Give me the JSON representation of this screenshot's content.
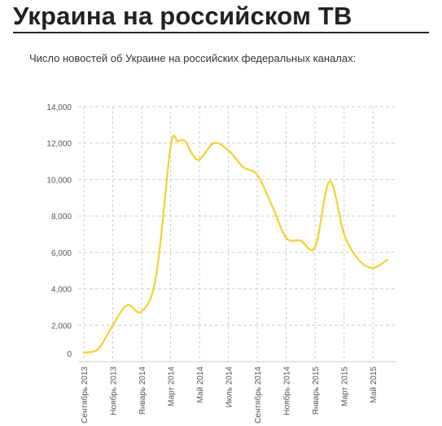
{
  "header": {
    "title": "Украина на российском ТВ",
    "subtitle": "Число новостей об Украине на российских федеральных каналах:"
  },
  "colors": {
    "line": "#f2d22e",
    "grid": "#cccccc",
    "text": "#555555"
  },
  "chart_data": {
    "type": "line",
    "title": "Украина на российском ТВ",
    "subtitle": "Число новостей об Украине на российских федеральных каналах:",
    "xlabel": "",
    "ylabel": "",
    "ylim": [
      0,
      14000
    ],
    "grid": true,
    "yticks": [
      0,
      2000,
      4000,
      6000,
      8000,
      10000,
      12000,
      14000
    ],
    "ytick_labels": [
      "0",
      "2,000",
      "4,000",
      "6,000",
      "8,000",
      "10,000",
      "12,000",
      "14,000"
    ],
    "xtick_labels": [
      "Сентябрь 2013",
      "Ноябрь 2013",
      "Январь 2014",
      "Март 2014",
      "Май 2014",
      "Июль 2014",
      "Сентябрь 2014",
      "Ноябрь 2014",
      "Январь 2015",
      "Март 2015",
      "Май 2015"
    ],
    "xtick_positions": [
      0,
      2,
      4,
      6,
      8,
      10,
      12,
      14,
      16,
      18,
      20
    ],
    "x": [
      0,
      1,
      2,
      3,
      4,
      5,
      6,
      6.5,
      7,
      7.5,
      8,
      9,
      10,
      11,
      12,
      13,
      14,
      15,
      16,
      17,
      18,
      19,
      20,
      21
    ],
    "series": [
      {
        "values": [
          500,
          700,
          2000,
          3100,
          2750,
          4700,
          11800,
          12100,
          12100,
          11400,
          11100,
          12000,
          11600,
          10700,
          10250,
          8600,
          6800,
          6650,
          6300,
          9900,
          7000,
          5600,
          5150,
          5600
        ]
      }
    ]
  }
}
